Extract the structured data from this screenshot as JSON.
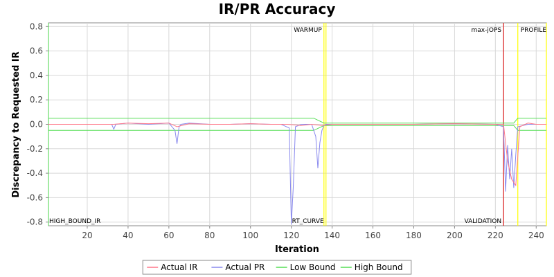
{
  "chart_data": {
    "type": "line",
    "title": "IR/PR Accuracy",
    "xlabel": "Iteration",
    "ylabel": "Discrepancy to Requested IR",
    "xlim": [
      1,
      245
    ],
    "ylim": [
      -0.83,
      0.83
    ],
    "x_ticks": [
      20,
      40,
      60,
      80,
      100,
      120,
      140,
      160,
      180,
      200,
      220,
      240
    ],
    "y_ticks": [
      0.8,
      0.6,
      0.4,
      0.2,
      0.0,
      -0.2,
      -0.4,
      -0.6,
      -0.8
    ],
    "y_tick_labels": [
      "0.8",
      "0.6",
      "0.4",
      "0.2",
      "0.0",
      "-0.2",
      "-0.4",
      "-0.6",
      "-0.8"
    ],
    "grid": true,
    "legend_position": "bottom",
    "markers": [
      {
        "x": 1,
        "label": "HIGH_BOUND_IR",
        "color": "#66dd66",
        "label_pos": "bottom-right"
      },
      {
        "x": 136,
        "label": "WARMUP",
        "color": "#ffff00",
        "label_pos": "top-left"
      },
      {
        "x": 137,
        "label": "RT_CURVE",
        "color": "#ffff00",
        "label_pos": "bottom-left"
      },
      {
        "x": 224,
        "label": "max-jOPS",
        "color": "#dd3333",
        "label_pos": "top-left"
      },
      {
        "x": 224,
        "label": "VALIDATION",
        "color": "#dd3333",
        "label_pos": "bottom-left"
      },
      {
        "x": 231,
        "label": "PROFILE",
        "color": "#ffff00",
        "label_pos": "top-right"
      },
      {
        "x": 245,
        "label": "",
        "color": "#ffff00",
        "label_pos": "none"
      }
    ],
    "series": [
      {
        "name": "Actual IR",
        "color": "#ff7788",
        "x": [
          1,
          20,
          33,
          40,
          50,
          60,
          64,
          70,
          80,
          90,
          100,
          110,
          118,
          125,
          130,
          135,
          140,
          160,
          180,
          200,
          220,
          224,
          226,
          228,
          230,
          232,
          236,
          240,
          245
        ],
        "y": [
          0.0,
          0.0,
          0.0,
          0.01,
          0.005,
          0.01,
          -0.02,
          0.005,
          0.0,
          0.0,
          0.005,
          0.0,
          0.0,
          -0.01,
          0.0,
          -0.01,
          0.0,
          0.0,
          0.0,
          0.005,
          0.0,
          0.0,
          -0.3,
          -0.45,
          -0.5,
          -0.02,
          0.01,
          0.0,
          0.0
        ]
      },
      {
        "name": "Actual PR",
        "color": "#8888ee",
        "x": [
          1,
          20,
          32,
          33,
          34,
          40,
          50,
          60,
          63,
          64,
          65,
          66,
          70,
          80,
          90,
          100,
          110,
          115,
          119,
          120,
          121,
          122,
          125,
          130,
          132,
          133,
          134,
          135,
          136,
          137,
          140,
          160,
          180,
          200,
          220,
          224,
          225,
          226,
          227,
          228,
          229,
          230,
          231,
          236,
          240,
          245
        ],
        "y": [
          0.0,
          0.0,
          0.0,
          -0.04,
          0.0,
          0.01,
          0.0,
          0.01,
          -0.05,
          -0.16,
          -0.02,
          0.0,
          0.01,
          0.0,
          0.0,
          0.005,
          0.0,
          0.0,
          -0.03,
          -0.82,
          -0.5,
          -0.02,
          0.0,
          0.0,
          -0.1,
          -0.36,
          -0.15,
          -0.05,
          -0.01,
          0.0,
          0.0,
          0.0,
          0.0,
          0.005,
          0.0,
          -0.02,
          -0.55,
          -0.17,
          -0.45,
          -0.2,
          -0.52,
          -0.25,
          -0.02,
          0.0,
          0.0,
          0.0
        ]
      },
      {
        "name": "Low Bound",
        "color": "#55dd55",
        "x": [
          1,
          131,
          136,
          224,
          229,
          231,
          245
        ],
        "y": [
          -0.05,
          -0.05,
          -0.01,
          -0.01,
          -0.01,
          -0.05,
          -0.05
        ]
      },
      {
        "name": "High Bound",
        "color": "#55dd55",
        "x": [
          1,
          131,
          136,
          224,
          229,
          231,
          245
        ],
        "y": [
          0.05,
          0.05,
          0.01,
          0.01,
          0.01,
          0.05,
          0.05
        ]
      }
    ]
  }
}
